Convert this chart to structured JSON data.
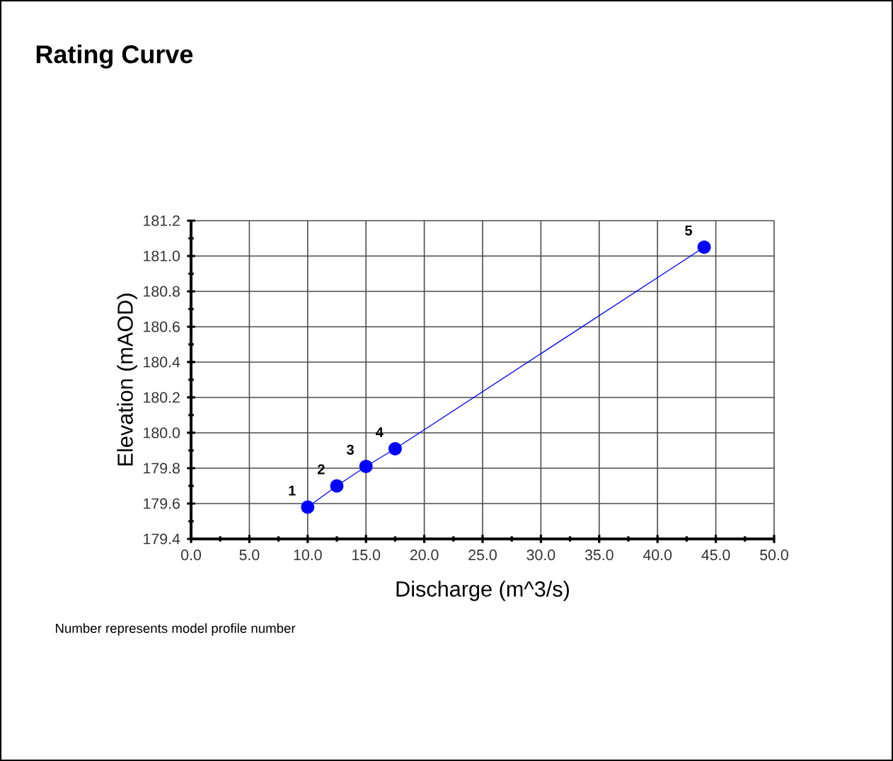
{
  "chart_data": {
    "type": "line",
    "title": "Rating Curve",
    "xlabel": "Discharge (m^3/s)",
    "ylabel": "Elevation (mAOD)",
    "x": [
      10,
      12.5,
      15,
      17.5,
      44
    ],
    "series": [
      {
        "color": "#0000ff",
        "values": [
          179.58,
          179.7,
          179.81,
          179.91,
          181.05
        ]
      }
    ],
    "marker": "circle",
    "line_style": "solid",
    "grid": true,
    "xlim": [
      0,
      50
    ],
    "ylim": [
      179.4,
      181.2
    ],
    "xticks": [
      {
        "value": 0,
        "label": "0.0"
      },
      {
        "value": 5,
        "label": "5.0"
      },
      {
        "value": 10,
        "label": "10.0"
      },
      {
        "value": 15,
        "label": "15.0"
      },
      {
        "value": 20,
        "label": "20.0"
      },
      {
        "value": 25,
        "label": "25.0"
      },
      {
        "value": 30,
        "label": "30.0"
      },
      {
        "value": 35,
        "label": "35.0"
      },
      {
        "value": 40,
        "label": "40.0"
      },
      {
        "value": 45,
        "label": "45.0"
      },
      {
        "value": 50,
        "label": "50.0"
      }
    ],
    "yticks": [
      {
        "value": 179.4,
        "label": "179.4"
      },
      {
        "value": 179.6,
        "label": "179.6"
      },
      {
        "value": 179.8,
        "label": "179.8"
      },
      {
        "value": 180.0,
        "label": "180.0"
      },
      {
        "value": 180.2,
        "label": "180.2"
      },
      {
        "value": 180.4,
        "label": "180.4"
      },
      {
        "value": 180.6,
        "label": "180.6"
      },
      {
        "value": 180.8,
        "label": "180.8"
      },
      {
        "value": 181.0,
        "label": "181.0"
      },
      {
        "value": 181.2,
        "label": "181.2"
      }
    ],
    "annotations": [
      {
        "text": "1",
        "x": 10,
        "y": 179.58
      },
      {
        "text": "2",
        "x": 12.5,
        "y": 179.7
      },
      {
        "text": "3",
        "x": 15,
        "y": 179.81
      },
      {
        "text": "4",
        "x": 17.5,
        "y": 179.91
      },
      {
        "text": "5",
        "x": 44,
        "y": 181.05
      },
      "Number represents model profile number"
    ]
  }
}
